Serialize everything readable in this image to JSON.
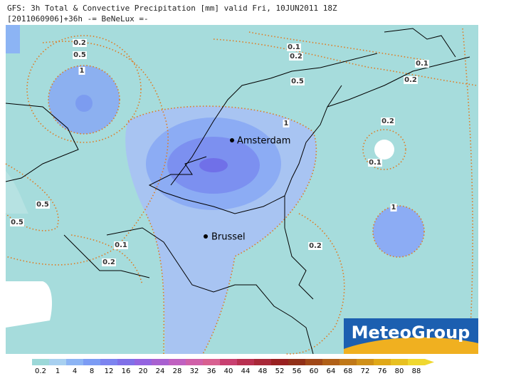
{
  "header": {
    "line1": "GFS: 3h Total & Convective Precipitation [mm] valid Fri, 10JUN2011 18Z",
    "line2": "[2011060906]+36h -= BeNeLux =-"
  },
  "cities": [
    "Amsterdam",
    "Brussel"
  ],
  "contour_labels": [
    "0.2",
    "0.5",
    "1",
    "0.1",
    "0.2",
    "0.5",
    "0.1",
    "0.2",
    "1",
    "0.2",
    "0.1",
    "1",
    "0.5",
    "0.5",
    "0.1",
    "0.2",
    "0.2"
  ],
  "logo": "MeteoGroup",
  "legend": {
    "labels": [
      "0.2",
      "1",
      "4",
      "8",
      "12",
      "16",
      "20",
      "24",
      "28",
      "32",
      "36",
      "40",
      "44",
      "48",
      "52",
      "56",
      "60",
      "64",
      "68",
      "72",
      "76",
      "80",
      "88"
    ],
    "colors": [
      "#9cd8d8",
      "#a8d0f0",
      "#8cb4f4",
      "#7c9cf4",
      "#7c84f0",
      "#8070e8",
      "#9464e0",
      "#a860d0",
      "#c060c0",
      "#d060a8",
      "#d86090",
      "#c84070",
      "#b83050",
      "#a82838",
      "#982020",
      "#903018",
      "#a04818",
      "#b06018",
      "#c07818",
      "#d09018",
      "#e0a818",
      "#e8c020",
      "#f0d830"
    ]
  }
}
